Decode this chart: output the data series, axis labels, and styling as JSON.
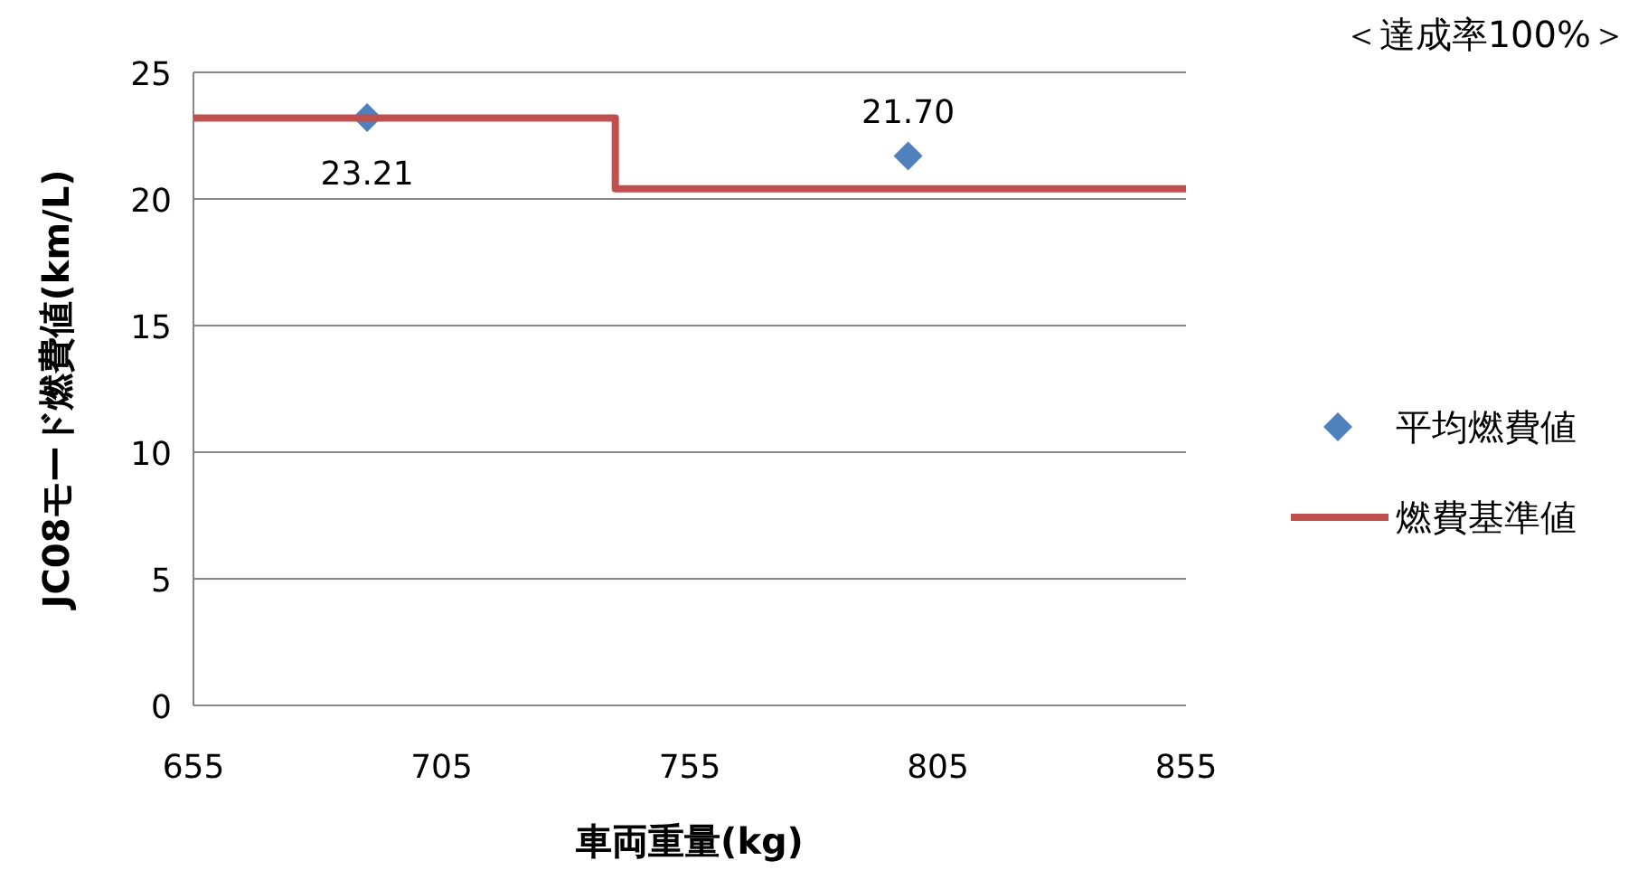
{
  "chart_data": {
    "type": "scatter",
    "xlabel": "車両重量(kg)",
    "ylabel": "JC08モード燃費値(km/L)",
    "annotations": [
      "＜達成率100%＞"
    ],
    "xlim": [
      655,
      855
    ],
    "xticks": [
      655,
      705,
      755,
      805,
      855
    ],
    "ylim": [
      0,
      25
    ],
    "yticks": [
      0,
      5,
      10,
      15,
      20,
      25
    ],
    "grid": "y",
    "legend": "right",
    "series": [
      {
        "name": "平均燃費値",
        "marker": "diamond",
        "color": "#4f81bd",
        "x": [
          690,
          799
        ],
        "values": [
          23.21,
          21.7
        ],
        "value_labels": [
          "23.21",
          "21.70"
        ]
      },
      {
        "name": "燃費基準値",
        "type": "step",
        "color": "#c0504d",
        "x": [
          655,
          740,
          855
        ],
        "values": [
          23.2,
          20.4,
          20.4
        ]
      }
    ]
  }
}
